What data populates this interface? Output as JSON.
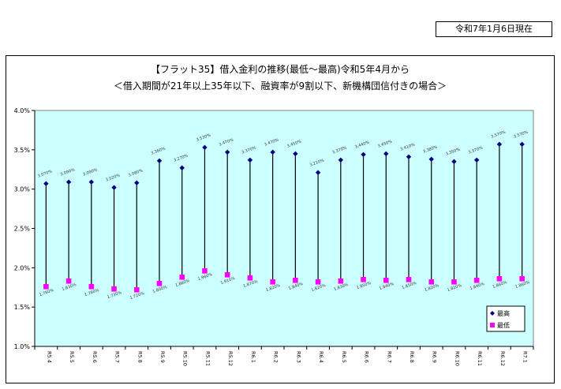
{
  "header": {
    "date_label": "令和7年1月6日現在"
  },
  "chart_data": {
    "type": "line",
    "title": "【フラット35】借入金利の推移(最低〜最高)令和5年4月から",
    "subtitle": "＜借入期間が21年以上35年以下、融資率が9割以下、新機構団信付きの場合＞",
    "xlabel": "",
    "ylabel": "",
    "ylim": [
      1.0,
      4.0
    ],
    "yticks": [
      "1.0%",
      "1.5%",
      "2.0%",
      "2.5%",
      "3.0%",
      "3.5%",
      "4.0%"
    ],
    "grid": false,
    "legend_position": "bottom-right",
    "categories": [
      "R5.4",
      "R5.5",
      "R5.6",
      "R5.7",
      "R5.8",
      "R5.9",
      "R5.10",
      "R5.11",
      "R5.12",
      "R6.1",
      "R6.2",
      "R6.3",
      "R6.4",
      "R6.5",
      "R6.6",
      "R6.7",
      "R6.8",
      "R6.9",
      "R6.10",
      "R6.11",
      "R6.12",
      "R7.1"
    ],
    "series": [
      {
        "name": "最高",
        "color": "#000080",
        "marker": "diamond",
        "values": [
          3.07,
          3.09,
          3.09,
          3.02,
          3.08,
          3.36,
          3.27,
          3.53,
          3.47,
          3.37,
          3.47,
          3.45,
          3.21,
          3.37,
          3.44,
          3.45,
          3.41,
          3.38,
          3.35,
          3.37,
          3.57,
          3.57
        ],
        "labels": [
          "3.070%",
          "3.090%",
          "3.090%",
          "3.020%",
          "3.080%",
          "3.360%",
          "3.270%",
          "3.530%",
          "3.470%",
          "3.370%",
          "3.470%",
          "3.450%",
          "3.210%",
          "3.370%",
          "3.440%",
          "3.450%",
          "3.410%",
          "3.380%",
          "3.350%",
          "3.370%",
          "3.570%",
          "3.570%"
        ]
      },
      {
        "name": "最低",
        "color": "#ff00ff",
        "marker": "square",
        "values": [
          1.76,
          1.83,
          1.76,
          1.73,
          1.72,
          1.8,
          1.88,
          1.96,
          1.91,
          1.87,
          1.82,
          1.84,
          1.82,
          1.83,
          1.85,
          1.84,
          1.85,
          1.82,
          1.82,
          1.84,
          1.86,
          1.86
        ],
        "labels": [
          "1.760%",
          "1.830%",
          "1.760%",
          "1.730%",
          "1.720%",
          "1.800%",
          "1.880%",
          "1.960%",
          "1.910%",
          "1.870%",
          "1.820%",
          "1.840%",
          "1.820%",
          "1.830%",
          "1.850%",
          "1.840%",
          "1.850%",
          "1.820%",
          "1.820%",
          "1.840%",
          "1.860%",
          "1.860%"
        ]
      }
    ],
    "colors": {
      "plot_background": "#ccffff",
      "range_line": "#000000"
    }
  }
}
